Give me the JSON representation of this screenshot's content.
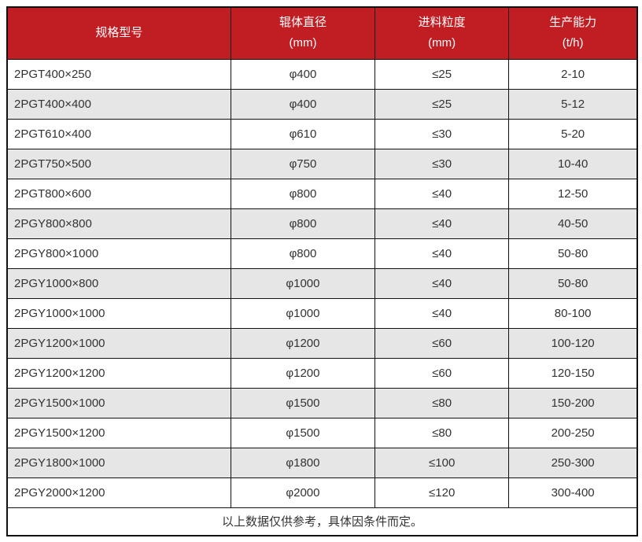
{
  "table": {
    "columns": [
      {
        "line1": "规格型号",
        "line2": ""
      },
      {
        "line1": "辊体直径",
        "line2": "(mm)"
      },
      {
        "line1": "进料粒度",
        "line2": "(mm)"
      },
      {
        "line1": "生产能力",
        "line2": "(t/h)"
      }
    ],
    "rows": [
      [
        "2PGT400×250",
        "φ400",
        "≤25",
        "2-10"
      ],
      [
        "2PGT400×400",
        "φ400",
        "≤25",
        "5-12"
      ],
      [
        "2PGT610×400",
        "φ610",
        "≤30",
        "5-20"
      ],
      [
        "2PGT750×500",
        "φ750",
        "≤30",
        "10-40"
      ],
      [
        "2PGT800×600",
        "φ800",
        "≤40",
        "12-50"
      ],
      [
        "2PGY800×800",
        "φ800",
        "≤40",
        "40-50"
      ],
      [
        "2PGY800×1000",
        "φ800",
        "≤40",
        "50-80"
      ],
      [
        "2PGY1000×800",
        "φ1000",
        "≤40",
        "50-80"
      ],
      [
        "2PGY1000×1000",
        "φ1000",
        "≤40",
        "80-100"
      ],
      [
        "2PGY1200×1000",
        "φ1200",
        "≤60",
        "100-120"
      ],
      [
        "2PGY1200×1200",
        "φ1200",
        "≤60",
        "120-150"
      ],
      [
        "2PGY1500×1000",
        "φ1500",
        "≤80",
        "150-200"
      ],
      [
        "2PGY1500×1200",
        "φ1500",
        "≤80",
        "200-250"
      ],
      [
        "2PGY1800×1000",
        "φ1800",
        "≤100",
        "250-300"
      ],
      [
        "2PGY2000×1200",
        "φ2000",
        "≤120",
        "300-400"
      ]
    ],
    "footnote": "以上数据仅供参考，具体因条件而定。",
    "colors": {
      "header_bg": "#c11e23",
      "header_text": "#ffffff",
      "alt_row_bg": "#e6e6e6",
      "row_bg": "#ffffff",
      "border": "#111111",
      "text": "#333333"
    }
  }
}
